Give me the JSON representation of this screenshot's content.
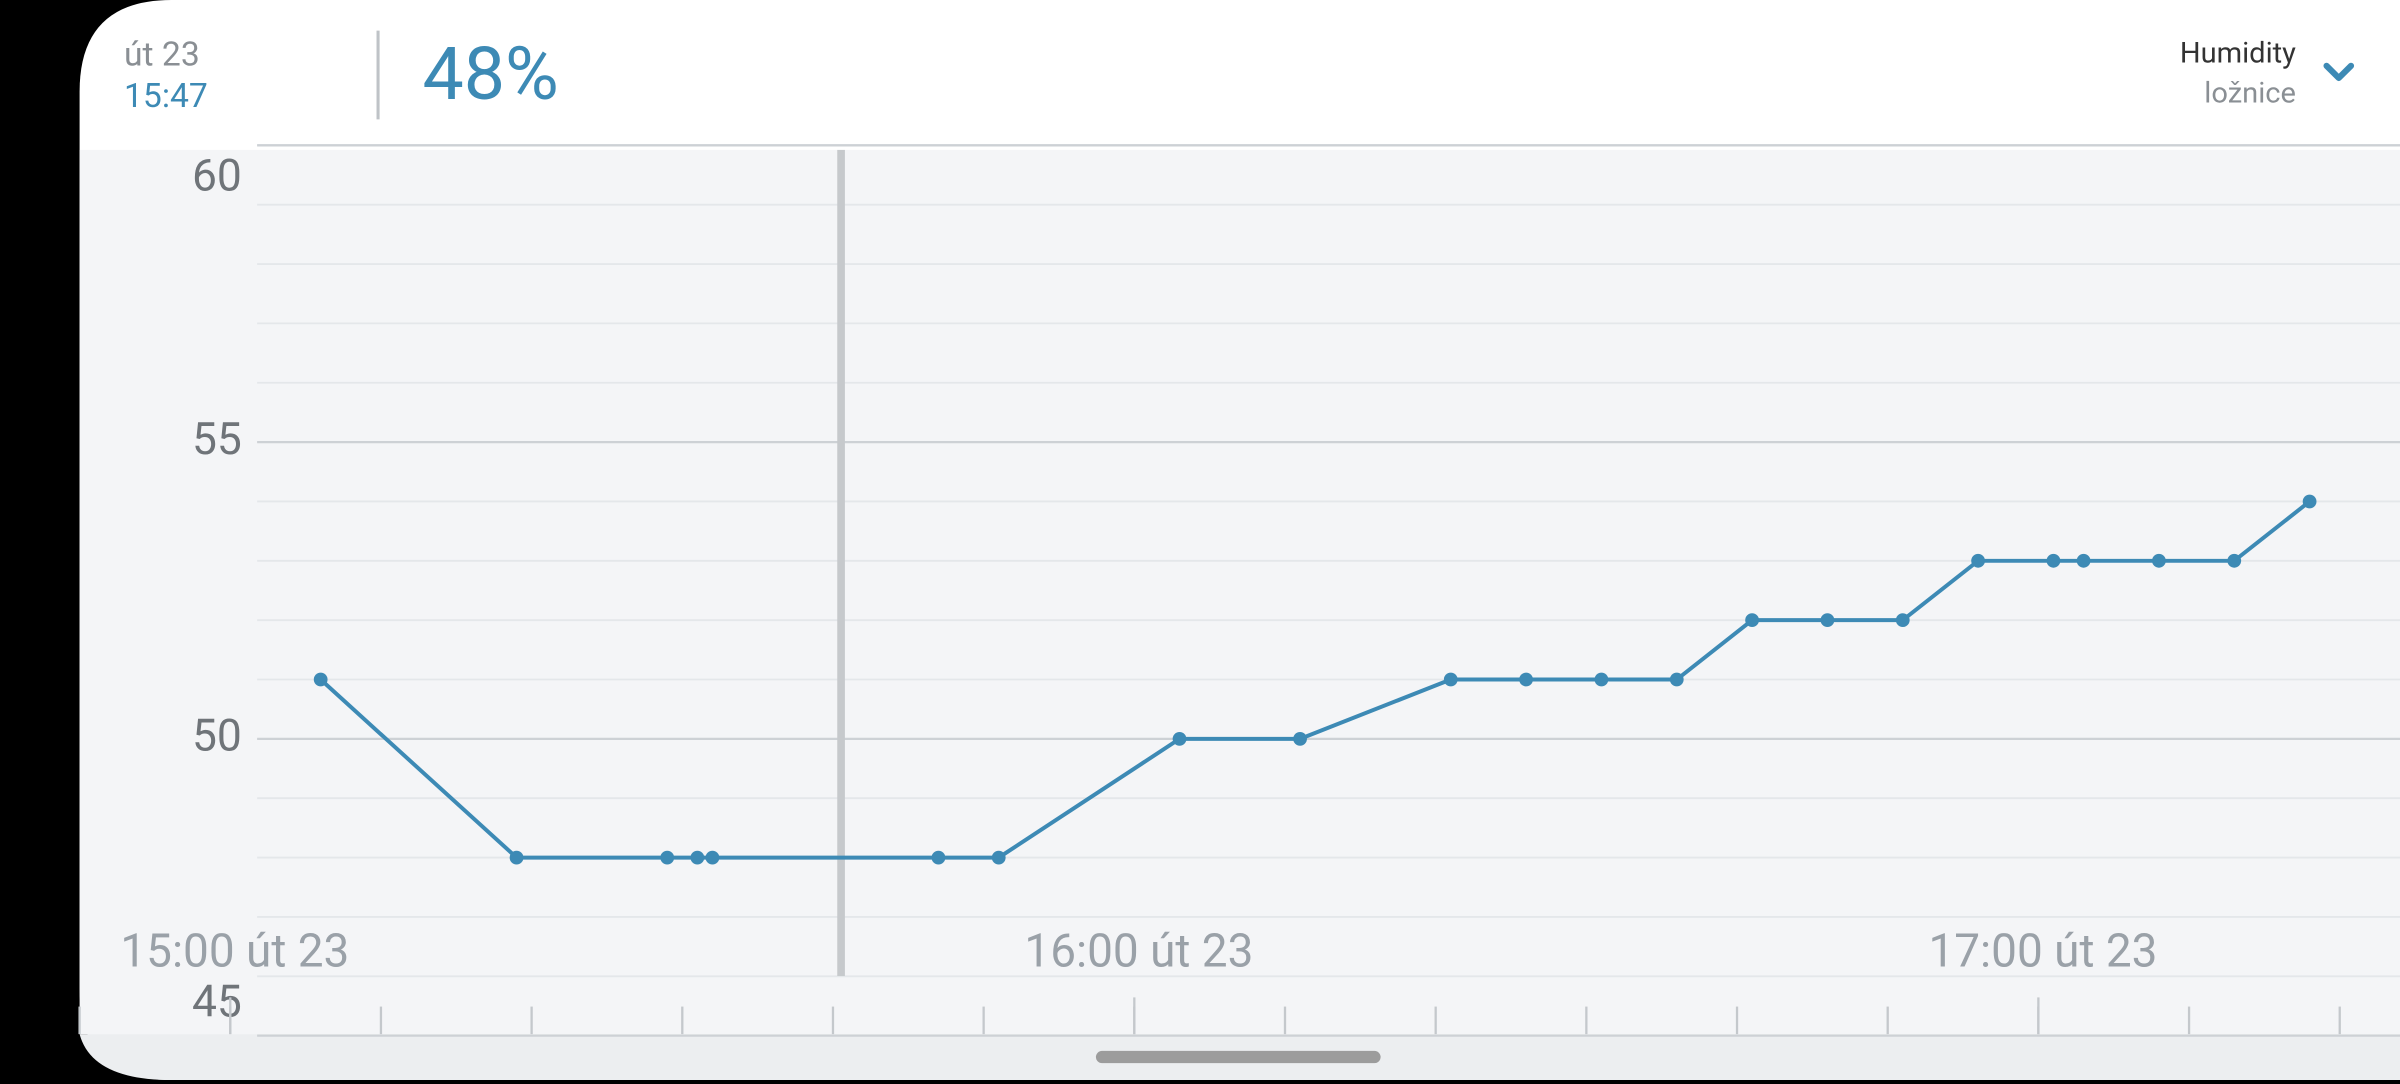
{
  "header": {
    "date": "út 23",
    "time": "15:47",
    "reading": "48%",
    "sensor": "Humidity",
    "room": "ložnice"
  },
  "chart_data": {
    "type": "line",
    "x": [
      "15:06",
      "15:19",
      "15:29",
      "15:31",
      "15:32",
      "15:47",
      "15:51",
      "16:03",
      "16:11",
      "16:21",
      "16:26",
      "16:31",
      "16:36",
      "16:41",
      "16:46",
      "16:51",
      "16:56",
      "17:01",
      "17:03",
      "17:08",
      "17:13",
      "17:18"
    ],
    "series": [
      {
        "name": "Humidity",
        "color": "#3d8ab5",
        "values": [
          51,
          48,
          48,
          48,
          48,
          48,
          48,
          50,
          50,
          51,
          51,
          51,
          51,
          52,
          52,
          52,
          53,
          53,
          53,
          53,
          53,
          54
        ]
      }
    ],
    "xlim": [
      "14:50",
      "17:24"
    ],
    "xticks": [
      {
        "value": "15:00",
        "label": "15:00 út 23"
      },
      {
        "value": "16:00",
        "label": "16:00 út 23"
      },
      {
        "value": "17:00",
        "label": "17:00 út 23"
      }
    ],
    "ylim": [
      45,
      60
    ],
    "yticks": [
      45,
      50,
      55,
      60
    ],
    "grid": true
  }
}
